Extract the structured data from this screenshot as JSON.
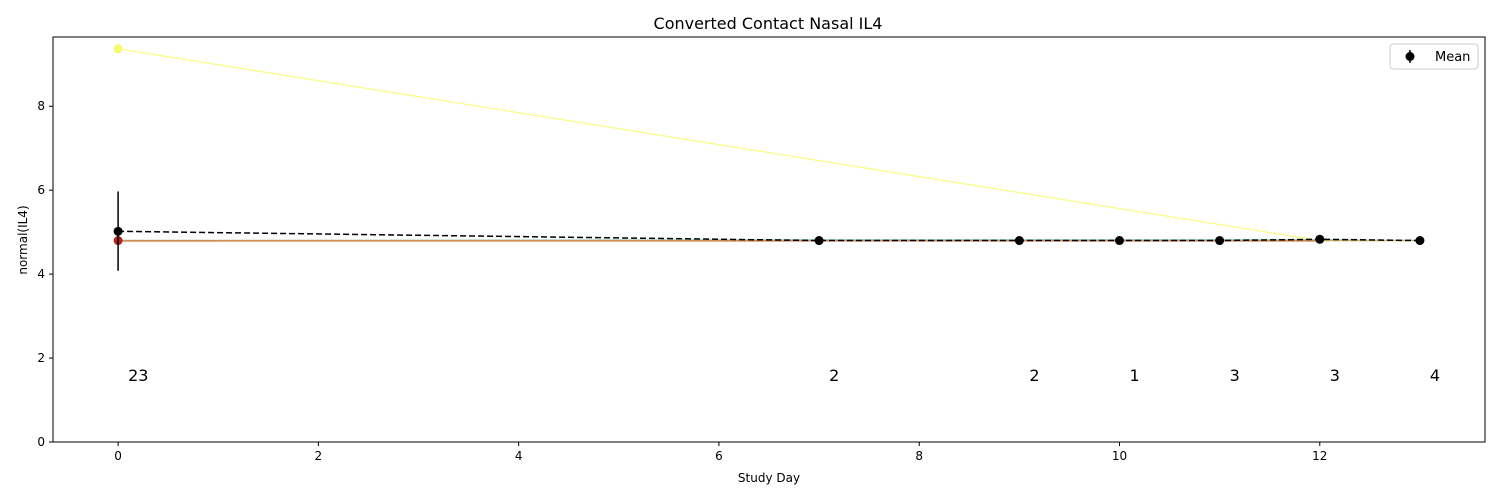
{
  "chart_data": {
    "type": "line",
    "title": "Converted Contact Nasal IL4",
    "xlabel": "Study Day",
    "ylabel": "normal(IL4)",
    "xlim": [
      -0.65,
      13.65
    ],
    "ylim": [
      0,
      9.65
    ],
    "xticks": [
      0,
      2,
      4,
      6,
      8,
      10,
      12
    ],
    "yticks": [
      0,
      2,
      4,
      6,
      8
    ],
    "grid": false,
    "legend": {
      "position": "top-right",
      "entries": [
        "Mean"
      ]
    },
    "subject_lines": [
      {
        "color": "#f7fb6a",
        "x": [
          0,
          12
        ],
        "y": [
          9.37,
          4.8
        ]
      },
      {
        "color": "#8fd3c3",
        "x": [
          0,
          7,
          9,
          10,
          11,
          12,
          13
        ],
        "y": [
          4.8,
          4.82,
          4.82,
          4.82,
          4.82,
          4.82,
          4.8
        ]
      },
      {
        "color": "#7fbf7f",
        "x": [
          0,
          13
        ],
        "y": [
          4.8,
          4.8
        ]
      },
      {
        "color": "#e0b060",
        "x": [
          0,
          13
        ],
        "y": [
          4.8,
          4.8
        ]
      },
      {
        "color": "#c86a3a",
        "x": [
          0,
          12
        ],
        "y": [
          4.79,
          4.79
        ]
      }
    ],
    "subject_points": [
      {
        "color": "#f7fb6a",
        "x": 0,
        "y": 9.37
      },
      {
        "color": "#b22222",
        "x": 0,
        "y": 4.8
      }
    ],
    "mean_series": {
      "name": "Mean",
      "color": "#000000",
      "x": [
        0,
        7,
        9,
        10,
        11,
        12,
        13
      ],
      "y": [
        5.02,
        4.8,
        4.8,
        4.8,
        4.8,
        4.83,
        4.8
      ],
      "err_low": [
        4.08,
        4.8,
        4.8,
        4.8,
        4.8,
        4.8,
        4.8
      ],
      "err_high": [
        5.97,
        4.8,
        4.8,
        4.8,
        4.8,
        4.86,
        4.8
      ]
    },
    "counts": [
      {
        "x": 0,
        "label": "23"
      },
      {
        "x": 7,
        "label": "2"
      },
      {
        "x": 9,
        "label": "2"
      },
      {
        "x": 10,
        "label": "1"
      },
      {
        "x": 11,
        "label": "3"
      },
      {
        "x": 12,
        "label": "3"
      },
      {
        "x": 13,
        "label": "4"
      }
    ],
    "count_label_y": 1.6
  }
}
